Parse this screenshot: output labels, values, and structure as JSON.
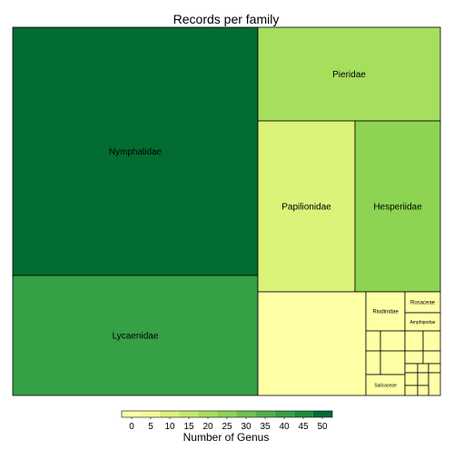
{
  "chart_data": {
    "type": "treemap",
    "title": "Records per family",
    "color_scale": {
      "title": "Number of Genus",
      "min": 0,
      "max": 50,
      "ticks": [
        0,
        5,
        10,
        15,
        20,
        25,
        30,
        35,
        40,
        45,
        50
      ],
      "colors": [
        "#ffffa6",
        "#f4fd93",
        "#dcf37a",
        "#c2ea69",
        "#a6df5c",
        "#8cd452",
        "#6fc24e",
        "#52b14b",
        "#35a046",
        "#1e8b3d",
        "#036c32"
      ]
    },
    "rects": [
      {
        "name": "Nymphalidae",
        "value": 50,
        "label_size": 10
      },
      {
        "name": "Lycaenidae",
        "value": 40,
        "label_size": 10
      },
      {
        "name": "Pieridae",
        "value": 20,
        "label_size": 10
      },
      {
        "name": "Papilionidae",
        "value": 8,
        "label_size": 10
      },
      {
        "name": "Hesperiidae",
        "value": 23,
        "label_size": 10
      },
      {
        "name": "",
        "value": 1
      },
      {
        "name": "Riodinidae",
        "value": 1,
        "label_size": 6
      },
      {
        "name": "Rosaceae",
        "value": 1,
        "label_size": 6
      },
      {
        "name": "Amphipodae",
        "value": 1,
        "label_size": 5
      },
      {
        "name": "",
        "value": 1
      },
      {
        "name": "",
        "value": 1
      },
      {
        "name": "",
        "value": 1
      },
      {
        "name": "",
        "value": 1
      },
      {
        "name": "",
        "value": 1
      },
      {
        "name": "",
        "value": 1
      },
      {
        "name": "",
        "value": 1
      },
      {
        "name": "",
        "value": 1
      },
      {
        "name": "Salicaceae",
        "value": 1,
        "label_size": 5
      },
      {
        "name": "",
        "value": 1
      },
      {
        "name": "",
        "value": 1
      },
      {
        "name": "",
        "value": 1
      },
      {
        "name": "",
        "value": 1
      },
      {
        "name": "",
        "value": 1
      },
      {
        "name": "",
        "value": 1
      },
      {
        "name": "",
        "value": 1
      },
      {
        "name": "",
        "value": 1
      }
    ]
  }
}
